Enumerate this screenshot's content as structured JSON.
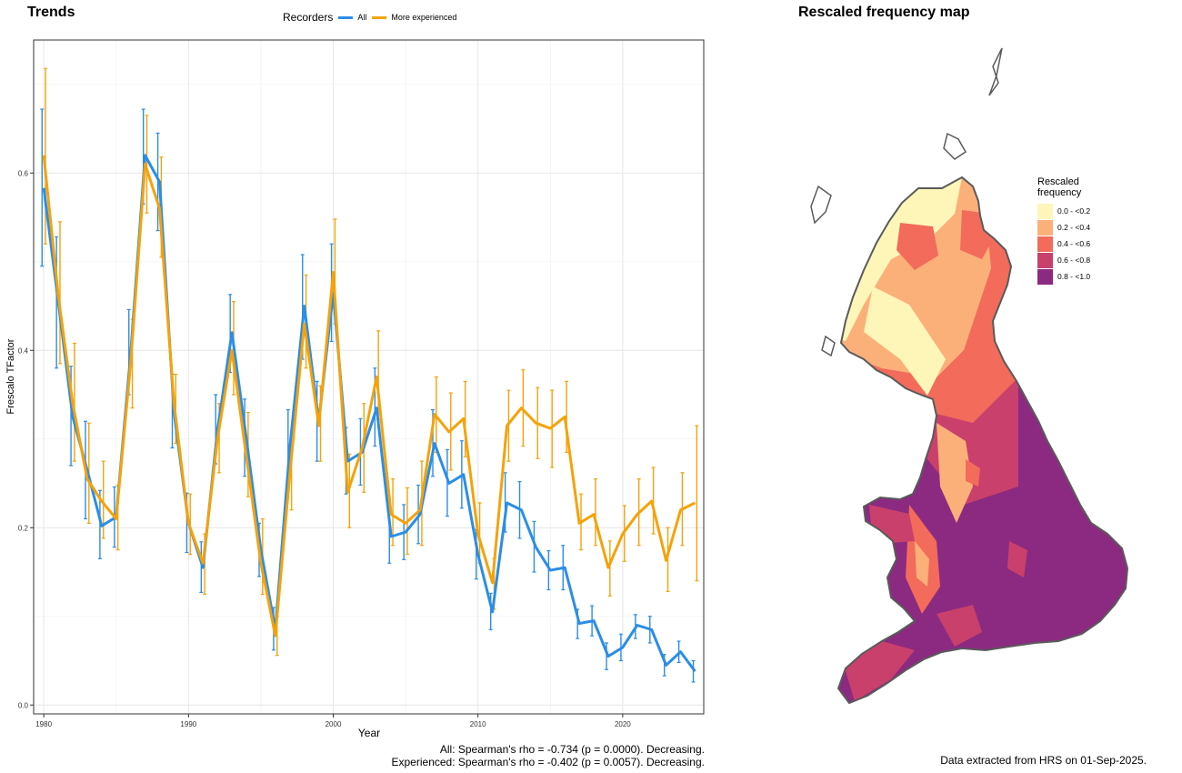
{
  "trends_panel": {
    "title": "Trends",
    "legend_title": "Recorders",
    "stats_all": "All: Spearman's rho = -0.734 (p = 0.0000). Decreasing.",
    "stats_experienced": "Experienced: Spearman's rho = -0.402 (p = 0.0057). Decreasing."
  },
  "map_panel": {
    "title": "Rescaled frequency map",
    "legend_title_1": "Rescaled",
    "legend_title_2": "frequency",
    "legend": [
      {
        "label": "0.0 - <0.2",
        "color": "#fdf6b8"
      },
      {
        "label": "0.2 - <0.4",
        "color": "#fbb07a"
      },
      {
        "label": "0.4 - <0.6",
        "color": "#f26b5b"
      },
      {
        "label": "0.6 - <0.8",
        "color": "#c9406d"
      },
      {
        "label": "0.8 - <1.0",
        "color": "#8b2a80"
      }
    ],
    "coastline_color": "#5a5a5a",
    "extract_note": "Data extracted from HRS on 01-Sep-2025."
  },
  "chart_data": {
    "type": "line",
    "title": "Trends",
    "xlabel": "Year",
    "ylabel": "Frescalo TFactor",
    "xlim": [
      1979.3,
      2025.6
    ],
    "ylim": [
      -0.01,
      0.75
    ],
    "xticks": [
      1980,
      1990,
      2000,
      2010,
      2020
    ],
    "yticks": [
      0.0,
      0.2,
      0.4,
      0.6
    ],
    "ytick_labels": [
      "0.0",
      "0.2",
      "0.4",
      "0.6"
    ],
    "grid": true,
    "legend_position": "top",
    "x": [
      1980,
      1981,
      1982,
      1983,
      1984,
      1985,
      1986,
      1987,
      1988,
      1989,
      1990,
      1991,
      1992,
      1993,
      1994,
      1995,
      1996,
      1997,
      1998,
      1999,
      2000,
      2001,
      2002,
      2003,
      2004,
      2005,
      2006,
      2007,
      2008,
      2009,
      2010,
      2011,
      2012,
      2013,
      2014,
      2015,
      2016,
      2017,
      2018,
      2019,
      2020,
      2021,
      2022,
      2023,
      2024,
      2025
    ],
    "series": [
      {
        "name": "All",
        "color": "#2b8de6",
        "values": [
          0.583,
          0.455,
          0.325,
          0.265,
          0.202,
          0.212,
          0.395,
          0.62,
          0.59,
          0.33,
          0.205,
          0.155,
          0.31,
          0.42,
          0.3,
          0.175,
          0.085,
          0.29,
          0.45,
          0.32,
          0.465,
          0.275,
          0.285,
          0.335,
          0.19,
          0.195,
          0.215,
          0.295,
          0.25,
          0.26,
          0.17,
          0.105,
          0.228,
          0.22,
          0.178,
          0.152,
          0.155,
          0.092,
          0.095,
          0.055,
          0.065,
          0.09,
          0.085,
          0.045,
          0.06,
          0.038
        ],
        "lower": [
          0.495,
          0.38,
          0.27,
          0.21,
          0.165,
          0.178,
          0.35,
          0.565,
          0.535,
          0.29,
          0.172,
          0.127,
          0.272,
          0.375,
          0.258,
          0.145,
          0.062,
          0.248,
          0.39,
          0.275,
          0.41,
          0.238,
          0.248,
          0.292,
          0.16,
          0.164,
          0.182,
          0.258,
          0.213,
          0.222,
          0.142,
          0.085,
          0.195,
          0.188,
          0.15,
          0.13,
          0.13,
          0.075,
          0.078,
          0.04,
          0.05,
          0.075,
          0.07,
          0.033,
          0.048,
          0.026
        ],
        "upper": [
          0.672,
          0.528,
          0.382,
          0.32,
          0.242,
          0.246,
          0.446,
          0.672,
          0.645,
          0.373,
          0.239,
          0.184,
          0.35,
          0.463,
          0.345,
          0.205,
          0.11,
          0.333,
          0.508,
          0.365,
          0.52,
          0.313,
          0.323,
          0.38,
          0.222,
          0.226,
          0.248,
          0.333,
          0.288,
          0.298,
          0.198,
          0.126,
          0.262,
          0.252,
          0.207,
          0.174,
          0.18,
          0.108,
          0.112,
          0.07,
          0.08,
          0.102,
          0.1,
          0.057,
          0.072,
          0.05
        ]
      },
      {
        "name": "More experienced",
        "color": "#f5a20a",
        "values": [
          0.62,
          0.462,
          0.34,
          0.255,
          0.23,
          0.21,
          0.385,
          0.61,
          0.56,
          0.34,
          0.205,
          0.16,
          0.3,
          0.4,
          0.28,
          0.16,
          0.078,
          0.26,
          0.43,
          0.315,
          0.488,
          0.24,
          0.29,
          0.37,
          0.215,
          0.205,
          0.22,
          0.328,
          0.308,
          0.323,
          0.193,
          0.138,
          0.315,
          0.335,
          0.318,
          0.312,
          0.325,
          0.205,
          0.215,
          0.155,
          0.193,
          0.215,
          0.23,
          0.163,
          0.22,
          0.228
        ],
        "lower": [
          0.52,
          0.385,
          0.275,
          0.205,
          0.188,
          0.175,
          0.335,
          0.555,
          0.505,
          0.295,
          0.17,
          0.125,
          0.262,
          0.35,
          0.235,
          0.125,
          0.056,
          0.22,
          0.38,
          0.275,
          0.43,
          0.2,
          0.24,
          0.322,
          0.18,
          0.17,
          0.18,
          0.285,
          0.265,
          0.28,
          0.16,
          0.108,
          0.275,
          0.292,
          0.278,
          0.268,
          0.285,
          0.175,
          0.18,
          0.123,
          0.162,
          0.18,
          0.193,
          0.128,
          0.18,
          0.14
        ],
        "upper": [
          0.718,
          0.545,
          0.408,
          0.318,
          0.275,
          0.248,
          0.435,
          0.665,
          0.618,
          0.373,
          0.238,
          0.193,
          0.34,
          0.455,
          0.33,
          0.21,
          0.1,
          0.305,
          0.485,
          0.36,
          0.548,
          0.283,
          0.34,
          0.422,
          0.255,
          0.245,
          0.275,
          0.37,
          0.352,
          0.365,
          0.228,
          0.165,
          0.355,
          0.378,
          0.358,
          0.355,
          0.365,
          0.238,
          0.255,
          0.185,
          0.225,
          0.255,
          0.268,
          0.2,
          0.262,
          0.315
        ]
      }
    ]
  }
}
